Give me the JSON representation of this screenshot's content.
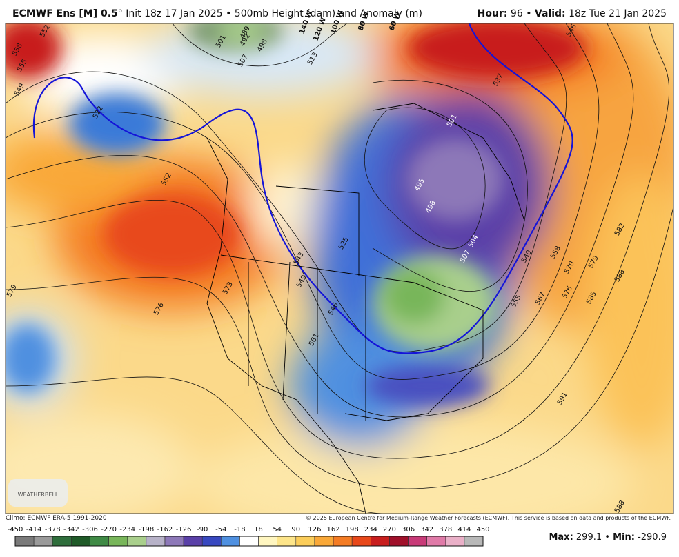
{
  "header": {
    "model": "ECMWF Ens [M] 0.5",
    "degree": "°",
    "init": "Init 18z 17 Jan 2025",
    "separator": "•",
    "product": "500mb Height (dam) and Anomaly (m)",
    "hour_label": "Hour:",
    "hour": 96,
    "valid_label": "Valid:",
    "valid": "18z Tue 21 Jan 2025"
  },
  "map": {
    "contour_labels": [
      552,
      558,
      555,
      549,
      522,
      552,
      579,
      576,
      573,
      543,
      549,
      525,
      546,
      561,
      501,
      507,
      513,
      489,
      492,
      498,
      501,
      495,
      498,
      504,
      507,
      537,
      546,
      555,
      567,
      558,
      570,
      576,
      579,
      582,
      588,
      585,
      591,
      588,
      540
    ],
    "longitude_labels": [
      "140 W",
      "120 W",
      "100 W",
      "80 W",
      "60 W"
    ],
    "logo": "WEATHERBELL"
  },
  "footer": {
    "climo": "Climo: ECMWF ERA-5 1991-2020",
    "copyright": "© 2025 European Centre for Medium-Range Weather Forecasts (ECMWF). This service is based on data and products of the ECMWF.",
    "max_label": "Max:",
    "max": 299.1,
    "min_label": "Min:",
    "min": -290.9
  },
  "colorbar": {
    "ticks": [
      -450,
      -414,
      -378,
      -342,
      -306,
      -270,
      -234,
      -198,
      -162,
      -126,
      -90,
      -54,
      -18,
      18,
      54,
      90,
      126,
      162,
      198,
      234,
      270,
      306,
      342,
      378,
      414,
      450
    ],
    "colors": [
      "#7a7a7a",
      "#9a9a9a",
      "#2f6e3c",
      "#1f5a28",
      "#3f8a45",
      "#78b65a",
      "#a9cf8c",
      "#b7b2c8",
      "#8d78b8",
      "#5a40a8",
      "#3848c0",
      "#4f90e0",
      "#ffffff",
      "#fff6c0",
      "#fde58a",
      "#fbcd5a",
      "#f9a838",
      "#f47c24",
      "#e8481a",
      "#c81e1e",
      "#a0102a",
      "#c83a78",
      "#e07aa8",
      "#eab0c8",
      "#b8b8b8"
    ]
  }
}
